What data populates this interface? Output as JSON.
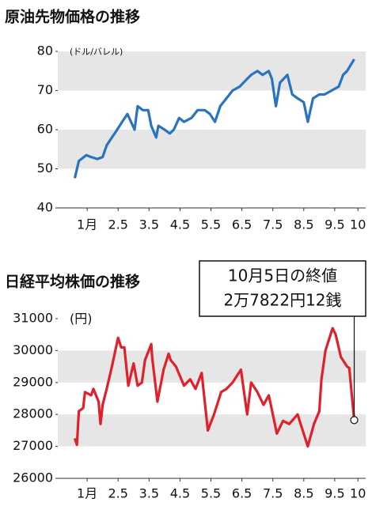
{
  "chart_data": [
    {
      "type": "line",
      "title": "原油先物価格の推移",
      "unit": "(ドル/バレル)",
      "color": "#2a73c0",
      "x": [
        1.1,
        1.23,
        1.47,
        1.63,
        1.83,
        2.0,
        2.13,
        2.3,
        2.47,
        2.63,
        2.8,
        3.03,
        3.13,
        3.3,
        3.47,
        3.57,
        3.73,
        3.8,
        4.0,
        4.17,
        4.3,
        4.47,
        4.63,
        4.87,
        5.07,
        5.3,
        5.47,
        5.63,
        5.8,
        6.0,
        6.2,
        6.43,
        6.67,
        6.8,
        7.0,
        7.17,
        7.37,
        7.47,
        7.6,
        7.73,
        7.97,
        8.13,
        8.3,
        8.5,
        8.63,
        8.8,
        9.0,
        9.17,
        9.4,
        9.63,
        9.77,
        9.9,
        10.13
      ],
      "values": [
        47.6,
        52,
        53.5,
        53,
        52.5,
        53,
        56,
        58,
        60,
        62,
        64,
        60,
        66,
        65,
        65,
        61,
        58,
        61,
        60,
        59,
        60,
        63,
        62,
        63,
        65,
        65,
        64,
        62,
        66,
        68,
        70,
        71,
        73,
        74,
        75,
        74,
        75,
        73,
        66,
        72,
        74,
        69,
        68,
        67,
        62,
        68,
        69,
        69,
        70,
        71,
        74,
        75,
        78
      ],
      "xlim": [
        0.55,
        10.5
      ],
      "ylim": [
        40,
        80
      ],
      "yticks": [
        40,
        50,
        60,
        70,
        80
      ],
      "bands": [
        [
          70,
          80
        ],
        [
          50,
          60
        ]
      ],
      "xticks": [
        {
          "value": 1.5,
          "label": "1月"
        },
        2.5,
        3.5,
        4.5,
        5.5,
        6.5,
        7.5,
        8.5,
        9.5,
        {
          "value": 10.25,
          "label": "10"
        }
      ]
    },
    {
      "type": "line",
      "title": "日経平均株価の推移",
      "unit": "(円)",
      "color": "#e0202a",
      "x": [
        1.1,
        1.17,
        1.23,
        1.37,
        1.43,
        1.63,
        1.7,
        1.87,
        1.93,
        2.0,
        2.13,
        2.3,
        2.5,
        2.6,
        2.7,
        2.83,
        3.0,
        3.13,
        3.27,
        3.37,
        3.57,
        3.6,
        3.77,
        3.97,
        4.13,
        4.2,
        4.37,
        4.63,
        4.83,
        5.0,
        5.2,
        5.4,
        5.6,
        5.83,
        6.0,
        6.2,
        6.47,
        6.67,
        6.8,
        7.0,
        7.2,
        7.37,
        7.63,
        7.83,
        8.03,
        8.3,
        8.63,
        8.83,
        9.0,
        9.07,
        9.2,
        9.43,
        9.53,
        9.7,
        9.9,
        9.97,
        10.13
      ],
      "values": [
        27250,
        27050,
        28100,
        28200,
        28700,
        28600,
        28800,
        28400,
        27700,
        28300,
        28800,
        29500,
        30400,
        30100,
        30100,
        28900,
        29600,
        28900,
        29000,
        29700,
        30200,
        29800,
        28400,
        29400,
        29900,
        29700,
        29500,
        28900,
        29100,
        28800,
        29300,
        27500,
        28000,
        28700,
        28800,
        29000,
        29400,
        28000,
        29000,
        28700,
        28300,
        28600,
        27400,
        27800,
        27700,
        28000,
        27000,
        27700,
        28100,
        29100,
        30000,
        30700,
        30500,
        29800,
        29500,
        29450,
        27822.12
      ],
      "xlim": [
        0.55,
        10.5
      ],
      "ylim": [
        26000,
        31000
      ],
      "yticks": [
        26000,
        27000,
        28000,
        29000,
        30000,
        31000
      ],
      "bands": [
        [
          29000,
          30000
        ],
        [
          27000,
          28000
        ]
      ],
      "xticks": [
        {
          "value": 1.5,
          "label": "1月"
        },
        2.5,
        3.5,
        4.5,
        5.5,
        6.5,
        7.5,
        8.5,
        9.5,
        {
          "value": 10.25,
          "label": "10"
        }
      ],
      "annotation": [
        "10月5日の終値",
        "2万7822円12銭"
      ]
    }
  ]
}
